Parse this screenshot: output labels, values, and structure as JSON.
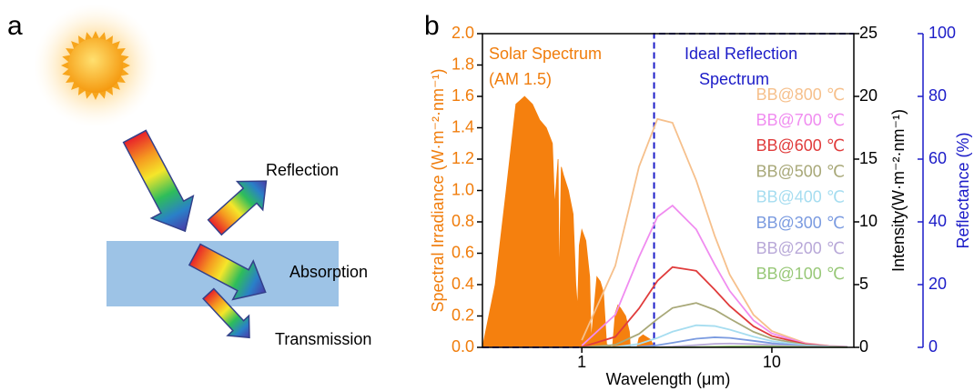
{
  "panel_a": {
    "label": "a",
    "labels": [
      "Reflection",
      "Absorption",
      "Transmission"
    ]
  },
  "chart_data": {
    "type": "line",
    "panel_label": "b",
    "x_label": "Wavelength (μm)",
    "y_label": "Spectral Irradiance (W·m⁻²·nm⁻¹)",
    "y2_label": "Intensity(W·m⁻²·nm⁻¹)",
    "y3_label": "Reflectance (%)",
    "annotations": [
      "Solar Spectrum",
      "(AM 1.5)",
      "Ideal Reflection",
      "Spectrum"
    ],
    "x_log": true,
    "xlim": [
      0.3,
      27
    ],
    "xticks": [
      1,
      10
    ],
    "ylim": [
      0,
      2.0
    ],
    "yticks": [
      {
        "value": 0,
        "label": "0.0"
      },
      {
        "value": 0.2,
        "label": "0.2"
      },
      {
        "value": 0.4,
        "label": "0.4"
      },
      {
        "value": 0.6,
        "label": "0.6"
      },
      {
        "value": 0.8,
        "label": "0.8"
      },
      {
        "value": 1.0,
        "label": "1.0"
      },
      {
        "value": 1.2,
        "label": "1.2"
      },
      {
        "value": 1.4,
        "label": "1.4"
      },
      {
        "value": 1.6,
        "label": "1.6"
      },
      {
        "value": 1.8,
        "label": "1.8"
      },
      {
        "value": 2.0,
        "label": "2.0"
      }
    ],
    "y2lim": [
      0,
      25
    ],
    "y2ticks": [
      0,
      5,
      10,
      15,
      20,
      25
    ],
    "y3lim": [
      0,
      100
    ],
    "y3ticks": [
      0,
      20,
      40,
      60,
      80,
      100
    ],
    "y_color": "#f07d0c",
    "y3_color": "#1c1cc8",
    "series": [
      {
        "style": "area",
        "color": "#f5800e",
        "axis": "y",
        "x": [
          0.3,
          0.35,
          0.4,
          0.45,
          0.5,
          0.55,
          0.6,
          0.65,
          0.7,
          0.72,
          0.75,
          0.76,
          0.78,
          0.8,
          0.85,
          0.9,
          0.93,
          0.95,
          0.97,
          1.0,
          1.05,
          1.1,
          1.12,
          1.15,
          1.2,
          1.25,
          1.3,
          1.35,
          1.45,
          1.5,
          1.55,
          1.6,
          1.7,
          1.78,
          1.8,
          1.95,
          2.0,
          2.1,
          2.3,
          2.4,
          2.5
        ],
        "values": [
          0,
          0.4,
          1.0,
          1.55,
          1.6,
          1.55,
          1.45,
          1.4,
          1.3,
          0.9,
          1.2,
          0.4,
          1.15,
          1.1,
          1.0,
          0.85,
          0.4,
          0.25,
          0.65,
          0.75,
          0.68,
          0.45,
          0.05,
          0.2,
          0.45,
          0.42,
          0.35,
          0.02,
          0,
          0.22,
          0.27,
          0.25,
          0.2,
          0.1,
          0,
          0,
          0.06,
          0.08,
          0.05,
          0,
          0
        ]
      },
      {
        "style": "dashed",
        "color": "#1c1cc8",
        "axis": "y3",
        "x": [
          0.3,
          2.4,
          2.4,
          27
        ],
        "values": [
          0,
          0,
          100,
          100
        ]
      },
      {
        "name": "BB@800 ℃",
        "color": "#f6c08c",
        "axis": "y2",
        "x": [
          1,
          1.5,
          2,
          2.5,
          3,
          4,
          5,
          6,
          8,
          10,
          15,
          20,
          25
        ],
        "values": [
          0.57,
          6.5,
          14.4,
          18.2,
          17.9,
          13.3,
          8.9,
          5.8,
          2.6,
          1.3,
          0.34,
          0.12,
          0.05
        ]
      },
      {
        "name": "BB@700 ℃",
        "color": "#f08cf0",
        "axis": "y2",
        "x": [
          1,
          1.5,
          2,
          2.5,
          3,
          4,
          5,
          6,
          8,
          10,
          15,
          20,
          25
        ],
        "values": [
          0.14,
          2.6,
          7.2,
          10.4,
          11.3,
          9.4,
          6.6,
          4.5,
          2.15,
          1.11,
          0.3,
          0.11,
          0.05
        ]
      },
      {
        "name": "BB@600 ℃",
        "color": "#e03c3c",
        "axis": "y2",
        "x": [
          1,
          1.5,
          2,
          2.5,
          3,
          4,
          5,
          6,
          8,
          10,
          15,
          20,
          25
        ],
        "values": [
          0.03,
          0.84,
          3.1,
          5.3,
          6.4,
          6.1,
          4.6,
          3.3,
          1.68,
          0.9,
          0.25,
          0.09,
          0.04
        ]
      },
      {
        "name": "BB@500 ℃",
        "color": "#a8a878",
        "axis": "y2",
        "x": [
          1,
          1.5,
          2,
          2.5,
          3,
          4,
          5,
          6,
          8,
          10,
          15,
          20,
          25
        ],
        "values": [
          0,
          0.2,
          1.07,
          2.26,
          3.14,
          3.54,
          3.0,
          2.29,
          1.24,
          0.69,
          0.2,
          0.077,
          0.035
        ]
      },
      {
        "name": "BB@400 ℃",
        "color": "#a6ddf0",
        "axis": "y2",
        "x": [
          1,
          1.5,
          2,
          2.5,
          3,
          4,
          5,
          6,
          8,
          10,
          15,
          20,
          25
        ],
        "values": [
          0,
          0.03,
          0.27,
          0.75,
          1.25,
          1.76,
          1.7,
          1.41,
          0.85,
          0.5,
          0.16,
          0.06,
          0.03
        ]
      },
      {
        "name": "BB@300 ℃",
        "color": "#7b9be0",
        "axis": "y2",
        "x": [
          1,
          1.5,
          2,
          2.5,
          3,
          4,
          5,
          6,
          8,
          10,
          15,
          20,
          25
        ],
        "values": [
          0,
          0,
          0.04,
          0.17,
          0.36,
          0.69,
          0.8,
          0.75,
          0.52,
          0.33,
          0.11,
          0.047,
          0.02
        ]
      },
      {
        "name": "BB@200 ℃",
        "color": "#b8a8d8",
        "axis": "y2",
        "x": [
          1,
          1.5,
          2,
          2.5,
          3,
          4,
          5,
          6,
          8,
          10,
          15,
          20,
          25
        ],
        "values": [
          0,
          0,
          0,
          0.02,
          0.06,
          0.18,
          0.28,
          0.31,
          0.26,
          0.19,
          0.075,
          0.033,
          0.016
        ]
      },
      {
        "name": "BB@100 ℃",
        "color": "#98c878",
        "axis": "y2",
        "x": [
          1,
          1.5,
          2,
          2.5,
          3,
          4,
          5,
          6,
          8,
          10,
          15,
          20,
          25
        ],
        "values": [
          0,
          0,
          0,
          0,
          0.004,
          0.024,
          0.054,
          0.078,
          0.094,
          0.081,
          0.041,
          0.02,
          0.01
        ]
      }
    ]
  }
}
